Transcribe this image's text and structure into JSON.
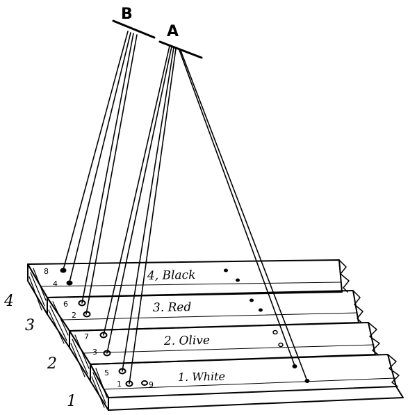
{
  "pivots": {
    "a": "A",
    "b": "B"
  },
  "boards": [
    {
      "side_number": "4",
      "label": "4, Black"
    },
    {
      "side_number": "3",
      "label": "3. Red"
    },
    {
      "side_number": "2",
      "label": "2. Olive"
    },
    {
      "side_number": "1",
      "label": "1. White"
    }
  ],
  "hole_numbers": {
    "black": [
      "8",
      "4"
    ],
    "red": [
      "6",
      "2"
    ],
    "olive": [
      "7",
      "3"
    ],
    "white": [
      "5",
      "1",
      "9"
    ]
  }
}
